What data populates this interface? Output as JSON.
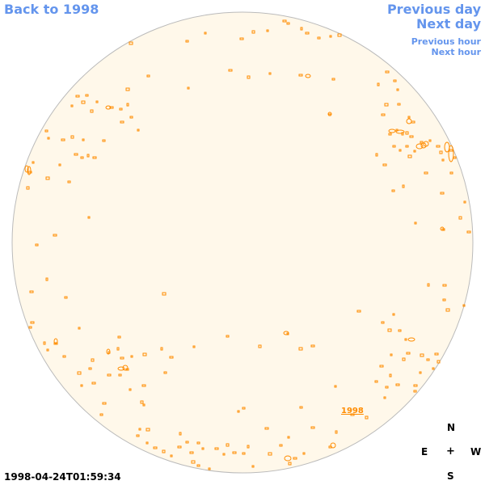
{
  "nav": {
    "back_label": "Back to 1998",
    "previous_day_label": "Previous day",
    "next_day_label": "Next day",
    "previous_hour_label": "Previous hour",
    "next_hour_label": "Next hour"
  },
  "compass": {
    "north": "N",
    "south": "S",
    "east": "E",
    "west": "W",
    "center": "+"
  },
  "timestamp": "1998-04-24T01:59:34",
  "year_label": "1998",
  "colors": {
    "disk_fill": "#fff8ea",
    "disk_stroke": "#bbbbbb",
    "feature": "#ff8c00",
    "link": "#6495ed"
  }
}
